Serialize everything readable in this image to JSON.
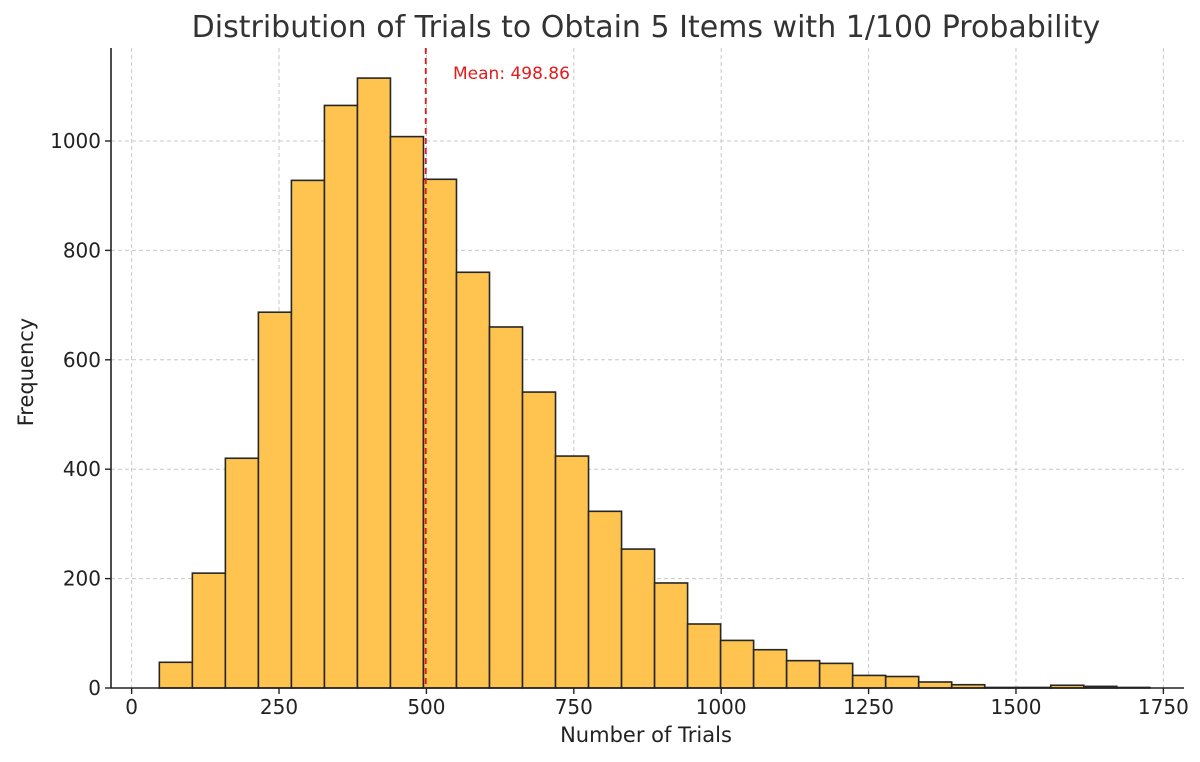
{
  "chart_data": {
    "type": "bar",
    "title": "Distribution of Trials to Obtain 5 Items with 1/100 Probability",
    "xlabel": "Number of Trials",
    "ylabel": "Frequency",
    "xlim": [
      -35,
      1785
    ],
    "ylim": [
      0,
      1170
    ],
    "xticks": [
      0,
      250,
      500,
      750,
      1000,
      1250,
      1500,
      1750
    ],
    "yticks": [
      0,
      200,
      400,
      600,
      800,
      1000
    ],
    "grid": true,
    "bar_color": "#fec44f",
    "bar_edge_color": "#262626",
    "bins": [
      {
        "x0": 47,
        "x1": 103,
        "value": 47
      },
      {
        "x0": 103,
        "x1": 159,
        "value": 210
      },
      {
        "x0": 159,
        "x1": 215,
        "value": 420
      },
      {
        "x0": 215,
        "x1": 271,
        "value": 687
      },
      {
        "x0": 271,
        "x1": 327,
        "value": 928
      },
      {
        "x0": 327,
        "x1": 383,
        "value": 1065
      },
      {
        "x0": 383,
        "x1": 439,
        "value": 1115
      },
      {
        "x0": 439,
        "x1": 495,
        "value": 1008
      },
      {
        "x0": 495,
        "x1": 551,
        "value": 930
      },
      {
        "x0": 551,
        "x1": 607,
        "value": 760
      },
      {
        "x0": 607,
        "x1": 663,
        "value": 660
      },
      {
        "x0": 663,
        "x1": 719,
        "value": 541
      },
      {
        "x0": 719,
        "x1": 775,
        "value": 424
      },
      {
        "x0": 775,
        "x1": 831,
        "value": 323
      },
      {
        "x0": 831,
        "x1": 887,
        "value": 254
      },
      {
        "x0": 887,
        "x1": 943,
        "value": 192
      },
      {
        "x0": 943,
        "x1": 999,
        "value": 117
      },
      {
        "x0": 999,
        "x1": 1055,
        "value": 87
      },
      {
        "x0": 1055,
        "x1": 1111,
        "value": 70
      },
      {
        "x0": 1111,
        "x1": 1167,
        "value": 50
      },
      {
        "x0": 1167,
        "x1": 1223,
        "value": 45
      },
      {
        "x0": 1223,
        "x1": 1279,
        "value": 23
      },
      {
        "x0": 1279,
        "x1": 1335,
        "value": 21
      },
      {
        "x0": 1335,
        "x1": 1391,
        "value": 11
      },
      {
        "x0": 1391,
        "x1": 1447,
        "value": 6
      },
      {
        "x0": 1447,
        "x1": 1503,
        "value": 1
      },
      {
        "x0": 1503,
        "x1": 1559,
        "value": 1
      },
      {
        "x0": 1559,
        "x1": 1615,
        "value": 5
      },
      {
        "x0": 1615,
        "x1": 1671,
        "value": 3
      },
      {
        "x0": 1671,
        "x1": 1727,
        "value": 1
      }
    ],
    "mean_line": {
      "value": 498.86,
      "label": "Mean: 498.86",
      "color": "#e31a1c",
      "style": "dashed"
    }
  }
}
